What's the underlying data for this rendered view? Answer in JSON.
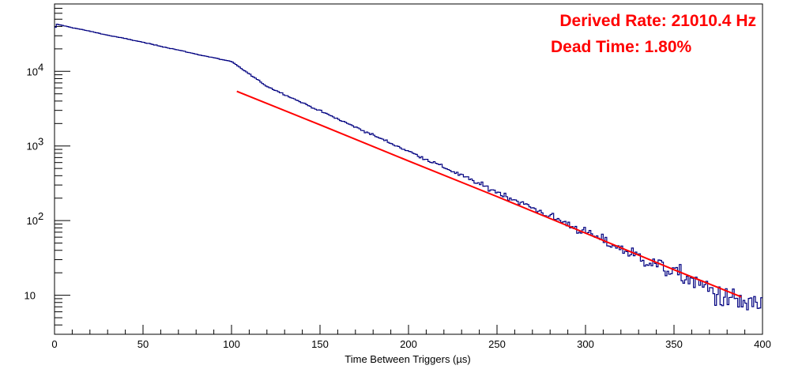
{
  "chart_data": {
    "type": "histogram",
    "title": "",
    "xlabel": "Time Between Triggers (µs)",
    "ylabel": "",
    "xlim": [
      0,
      400
    ],
    "ylim": [
      3,
      80000
    ],
    "y_scale": "log",
    "grid": false,
    "legend": "none",
    "bin_width_us": 1,
    "x_ticks": [
      "0",
      "50",
      "100",
      "150",
      "200",
      "250",
      "300",
      "350",
      "400"
    ],
    "y_ticks": [
      {
        "value": 10,
        "base": "10",
        "exp": ""
      },
      {
        "value": 100,
        "base": "10",
        "exp": "2"
      },
      {
        "value": 1000,
        "base": "10",
        "exp": "3"
      },
      {
        "value": 10000,
        "base": "10",
        "exp": "4"
      }
    ],
    "series": [
      {
        "kind": "histogram",
        "color": "#000080",
        "x": [
          0,
          1,
          2,
          3,
          5,
          10,
          20,
          30,
          40,
          50,
          60,
          70,
          80,
          90,
          100,
          120,
          140,
          160,
          180,
          200,
          220,
          240,
          260,
          280,
          300,
          320,
          340,
          360,
          380,
          390,
          395,
          400
        ],
        "y": [
          35000,
          43000,
          42500,
          42000,
          41000,
          38500,
          34500,
          30500,
          27500,
          24500,
          21700,
          19300,
          17000,
          15200,
          13500,
          6300,
          3800,
          2300,
          1400,
          850,
          520,
          310,
          190,
          115,
          70,
          42,
          26,
          16,
          9,
          8,
          7,
          8
        ]
      },
      {
        "kind": "fit",
        "color": "#ff0000",
        "x": [
          103,
          150,
          200,
          250,
          300,
          350,
          388
        ],
        "y": [
          5400,
          1920,
          630,
          210,
          68,
          22,
          9.5
        ]
      }
    ],
    "annotations": [
      "Derived Rate: 21010.4 Hz",
      "Dead Time: 1.80%"
    ],
    "colors": {
      "annotation": "#ff0000",
      "histogram": "#000080",
      "fit": "#ff0000",
      "frame": "#000000"
    }
  }
}
